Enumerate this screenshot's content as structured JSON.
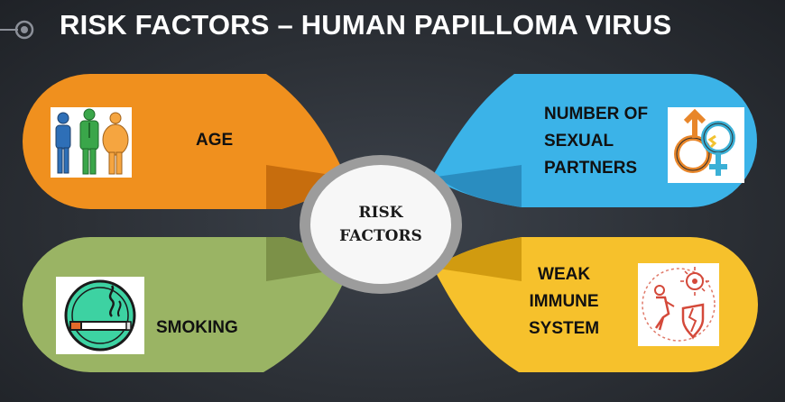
{
  "title": "RISK FACTORS – HUMAN PAPILLOMA VIRUS",
  "center_label": "RISK\nFACTORS",
  "factors": [
    {
      "label": "AGE",
      "color": "#f0901e",
      "icon": "people-sizes-icon"
    },
    {
      "label": "NUMBER OF\nSEXUAL\nPARTNERS",
      "color": "#3bb3e8",
      "icon": "gender-symbols-icon"
    },
    {
      "label": "SMOKING",
      "color": "#9ab464",
      "icon": "cigarette-icon"
    },
    {
      "label": "WEAK\nIMMUNE\nSYSTEM",
      "color": "#f6c12c",
      "icon": "immune-system-icon"
    }
  ]
}
